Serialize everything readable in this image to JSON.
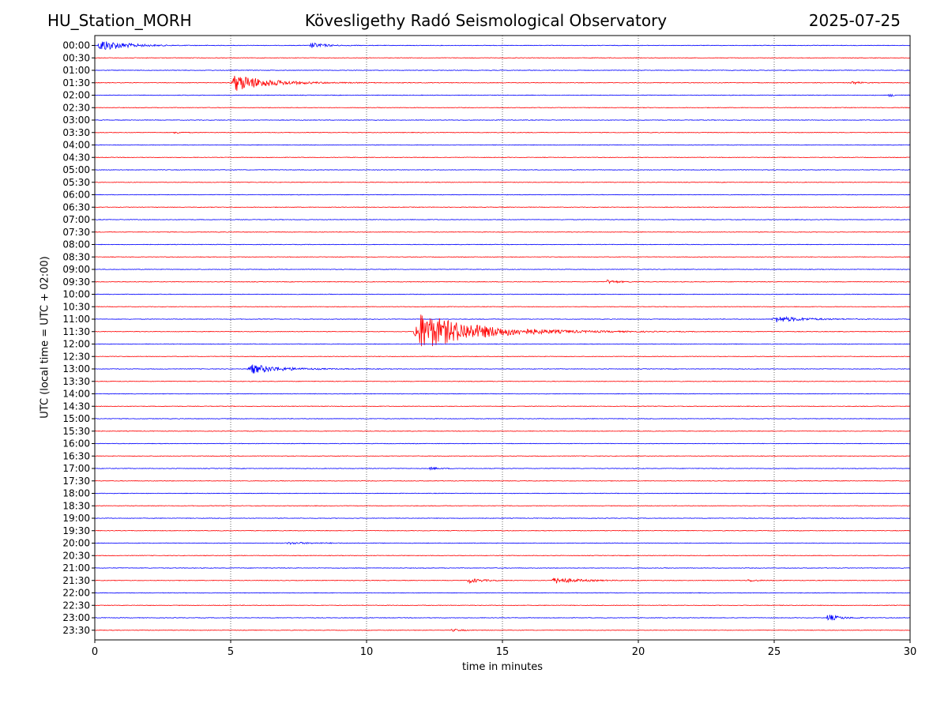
{
  "header": {
    "station": "HU_Station_MORH",
    "title": "Kövesligethy Radó Seismological Observatory",
    "date": "2025-07-25"
  },
  "chart_data": {
    "type": "line",
    "title": "Kövesligethy Radó Seismological Observatory",
    "xlabel": "time in minutes",
    "ylabel": "UTC (local time = UTC + 02:00)",
    "xlim": [
      0,
      30
    ],
    "xticks": [
      0,
      5,
      10,
      15,
      20,
      25,
      30
    ],
    "grid": "vertical dotted at x ticks",
    "trace_colors": [
      "#0000ff",
      "#ff0000"
    ],
    "rows": [
      "00:00",
      "00:30",
      "01:00",
      "01:30",
      "02:00",
      "02:30",
      "03:00",
      "03:30",
      "04:00",
      "04:30",
      "05:00",
      "05:30",
      "06:00",
      "06:30",
      "07:00",
      "07:30",
      "08:00",
      "08:30",
      "09:00",
      "09:30",
      "10:00",
      "10:30",
      "11:00",
      "11:30",
      "12:00",
      "12:30",
      "13:00",
      "13:30",
      "14:00",
      "14:30",
      "15:00",
      "15:30",
      "16:00",
      "16:30",
      "17:00",
      "17:30",
      "18:00",
      "18:30",
      "19:00",
      "19:30",
      "20:00",
      "20:30",
      "21:00",
      "21:30",
      "22:00",
      "22:30",
      "23:00",
      "23:30"
    ],
    "events": [
      {
        "row": 0,
        "start": 0.1,
        "amp": 1.0,
        "dur": 2.5
      },
      {
        "row": 0,
        "start": 7.9,
        "amp": 0.45,
        "dur": 1.5
      },
      {
        "row": 3,
        "start": 5.0,
        "amp": 1.4,
        "dur": 3.5
      },
      {
        "row": 3,
        "start": 27.8,
        "amp": 0.3,
        "dur": 0.8
      },
      {
        "row": 4,
        "start": 29.2,
        "amp": 0.25,
        "dur": 0.6
      },
      {
        "row": 7,
        "start": 2.9,
        "amp": 0.25,
        "dur": 0.6
      },
      {
        "row": 19,
        "start": 18.8,
        "amp": 0.3,
        "dur": 1.2
      },
      {
        "row": 22,
        "start": 24.9,
        "amp": 0.5,
        "dur": 3.0
      },
      {
        "row": 23,
        "start": 11.7,
        "amp": 3.0,
        "dur": 6.0
      },
      {
        "row": 26,
        "start": 5.6,
        "amp": 0.75,
        "dur": 3.2
      },
      {
        "row": 34,
        "start": 12.3,
        "amp": 0.2,
        "dur": 1.0
      },
      {
        "row": 40,
        "start": 7.0,
        "amp": 0.15,
        "dur": 3.0
      },
      {
        "row": 43,
        "start": 13.7,
        "amp": 0.4,
        "dur": 1.5
      },
      {
        "row": 43,
        "start": 16.8,
        "amp": 0.5,
        "dur": 2.5
      },
      {
        "row": 43,
        "start": 24.0,
        "amp": 0.2,
        "dur": 1.0
      },
      {
        "row": 46,
        "start": 26.9,
        "amp": 0.55,
        "dur": 1.3
      },
      {
        "row": 47,
        "start": 13.1,
        "amp": 0.2,
        "dur": 1.0
      }
    ]
  }
}
